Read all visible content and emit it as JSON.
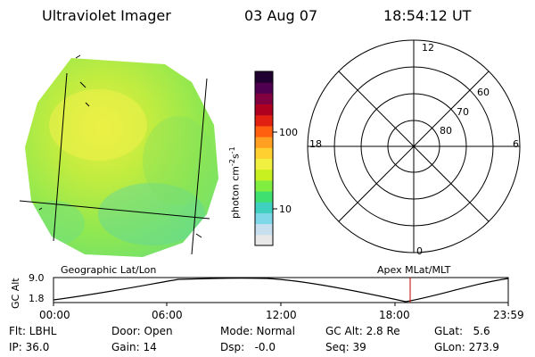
{
  "header": {
    "instrument": "Ultraviolet Imager",
    "date": "03 Aug 07",
    "time": "18:54:12 UT"
  },
  "colorbar": {
    "unit_label": "photon cm",
    "unit_exp1": "-2",
    "unit_mid": "s",
    "unit_exp2": "-1",
    "tick_100": "100",
    "tick_10": "10",
    "colors": [
      "#e8e8e8",
      "#c8dff0",
      "#7fd8e8",
      "#40d0c0",
      "#40e070",
      "#80ee40",
      "#c8f020",
      "#f0f040",
      "#ffd030",
      "#ffa020",
      "#ff6010",
      "#e02010",
      "#b00020",
      "#800040",
      "#500050",
      "#200030"
    ]
  },
  "polar_plot": {
    "labels": {
      "top": "12",
      "left": "18",
      "right": "6",
      "bottom": "0",
      "r60": "60",
      "r70": "70",
      "r80": "80"
    }
  },
  "timeline": {
    "y_axis_label": "GC Alt",
    "y_max": "9.0",
    "y_min": "1.8",
    "left_title": "Geographic Lat/Lon",
    "right_title": "Apex MLat/MLT",
    "ticks": [
      "00:00",
      "06:00",
      "12:00",
      "18:00",
      "23:59"
    ]
  },
  "status": {
    "flt": "Flt: LBHL",
    "ip": "IP: 36.0",
    "door": "Door: Open",
    "gain": "Gain: 14",
    "mode": "Mode: Normal",
    "dsp": "Dsp:   -0.0",
    "gcalt": "GC Alt: 2.8 Re",
    "seq": "Seq: 39",
    "glat": "GLat:   5.6",
    "glon": "GLon: 273.9"
  }
}
